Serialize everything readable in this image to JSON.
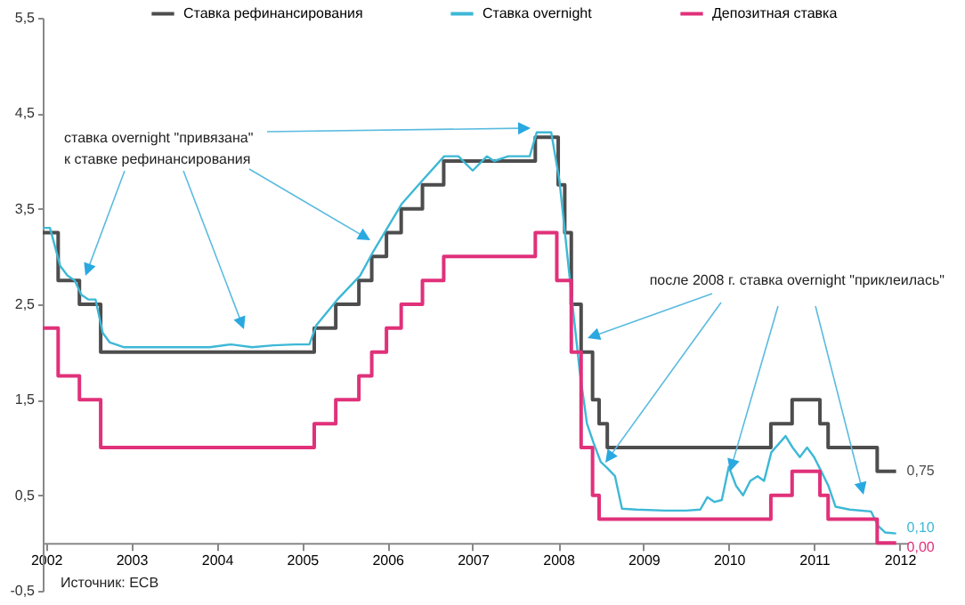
{
  "chart_data": {
    "type": "line",
    "series": [
      {
        "name": "Ставка рефинансирования",
        "color": "#4d4d4d",
        "type": "step",
        "x": [
          "2002-10-01",
          "2002-12-06",
          "2003-03-07",
          "2003-06-06",
          "2005-12-06",
          "2006-03-08",
          "2006-06-15",
          "2006-08-09",
          "2006-10-11",
          "2006-12-13",
          "2007-03-14",
          "2007-06-13",
          "2008-07-09",
          "2008-10-15",
          "2008-11-12",
          "2008-12-10",
          "2009-01-21",
          "2009-03-11",
          "2009-04-08",
          "2009-05-13",
          "2011-04-13",
          "2011-07-13",
          "2011-11-09",
          "2011-12-14",
          "2012-07-11",
          "2012-09-30"
        ],
        "values": [
          3.25,
          2.75,
          2.5,
          2.0,
          2.25,
          2.5,
          2.75,
          3.0,
          3.25,
          3.5,
          3.75,
          4.0,
          4.25,
          3.75,
          3.25,
          2.5,
          2.0,
          1.5,
          1.25,
          1.0,
          1.25,
          1.5,
          1.25,
          1.0,
          0.75,
          0.75
        ]
      },
      {
        "name": "Ставка overnight",
        "color": "#3db8d6",
        "x": [
          "2002-10-01",
          "2002-11-01",
          "2002-12-15",
          "2003-01-15",
          "2003-02-15",
          "2003-03-15",
          "2003-04-15",
          "2003-05-15",
          "2003-06-15",
          "2003-07-15",
          "2003-09-15",
          "2003-12-15",
          "2004-03-15",
          "2004-06-15",
          "2004-09-15",
          "2004-12-15",
          "2005-03-15",
          "2005-06-15",
          "2005-09-15",
          "2005-11-15",
          "2005-12-15",
          "2006-03-15",
          "2006-06-20",
          "2006-08-15",
          "2006-10-15",
          "2006-12-15",
          "2007-03-15",
          "2007-06-15",
          "2007-08-15",
          "2007-10-15",
          "2007-12-15",
          "2008-01-15",
          "2008-03-15",
          "2008-06-15",
          "2008-07-15",
          "2008-09-15",
          "2008-10-20",
          "2008-11-15",
          "2008-12-15",
          "2009-01-15",
          "2009-02-15",
          "2009-03-15",
          "2009-04-15",
          "2009-05-15",
          "2009-06-15",
          "2009-07-15",
          "2009-09-15",
          "2010-01-15",
          "2010-04-15",
          "2010-06-15",
          "2010-07-15",
          "2010-08-15",
          "2010-09-15",
          "2010-10-15",
          "2010-11-15",
          "2010-12-15",
          "2011-01-15",
          "2011-02-15",
          "2011-03-15",
          "2011-04-15",
          "2011-06-15",
          "2011-07-15",
          "2011-08-15",
          "2011-09-15",
          "2011-10-15",
          "2011-11-15",
          "2011-12-15",
          "2012-01-15",
          "2012-03-15",
          "2012-06-15",
          "2012-07-15",
          "2012-08-15",
          "2012-09-30"
        ],
        "values": [
          3.3,
          3.3,
          2.9,
          2.8,
          2.75,
          2.6,
          2.55,
          2.55,
          2.2,
          2.1,
          2.05,
          2.05,
          2.05,
          2.05,
          2.05,
          2.08,
          2.05,
          2.07,
          2.08,
          2.08,
          2.28,
          2.55,
          2.8,
          3.05,
          3.3,
          3.55,
          3.8,
          4.05,
          4.05,
          3.9,
          4.05,
          4.0,
          4.05,
          4.05,
          4.3,
          4.3,
          3.8,
          3.2,
          2.5,
          1.8,
          1.25,
          1.05,
          0.85,
          0.78,
          0.7,
          0.36,
          0.35,
          0.34,
          0.34,
          0.35,
          0.48,
          0.43,
          0.45,
          0.8,
          0.6,
          0.5,
          0.65,
          0.7,
          0.65,
          0.95,
          1.12,
          1.0,
          0.9,
          1.0,
          0.9,
          0.75,
          0.6,
          0.38,
          0.35,
          0.33,
          0.18,
          0.11,
          0.1
        ]
      },
      {
        "name": "Депозитная ставка",
        "color": "#e0317a",
        "type": "step",
        "x": [
          "2002-10-01",
          "2002-12-06",
          "2003-03-07",
          "2003-06-06",
          "2005-12-06",
          "2006-03-08",
          "2006-06-15",
          "2006-08-09",
          "2006-10-11",
          "2006-12-13",
          "2007-03-14",
          "2007-06-13",
          "2008-07-09",
          "2008-10-09",
          "2008-12-10",
          "2009-01-21",
          "2009-03-11",
          "2009-04-08",
          "2011-04-13",
          "2011-07-13",
          "2011-11-09",
          "2011-12-14",
          "2012-07-11",
          "2012-09-30"
        ],
        "values": [
          2.25,
          1.75,
          1.5,
          1.0,
          1.25,
          1.5,
          1.75,
          2.0,
          2.25,
          2.5,
          2.75,
          3.0,
          3.25,
          2.75,
          2.0,
          1.0,
          0.5,
          0.25,
          0.5,
          0.75,
          0.5,
          0.25,
          0.0,
          0.0
        ]
      }
    ],
    "xlim": [
      "2002-10-01",
      "2012-11-20"
    ],
    "xticks": [
      {
        "value": "2002-10-15",
        "label": "2002"
      },
      {
        "value": "2003-10-15",
        "label": "2003"
      },
      {
        "value": "2004-10-15",
        "label": "2004"
      },
      {
        "value": "2005-10-15",
        "label": "2005"
      },
      {
        "value": "2006-10-15",
        "label": "2006"
      },
      {
        "value": "2007-10-15",
        "label": "2007"
      },
      {
        "value": "2008-10-15",
        "label": "2008"
      },
      {
        "value": "2009-10-15",
        "label": "2009"
      },
      {
        "value": "2010-10-15",
        "label": "2010"
      },
      {
        "value": "2011-10-15",
        "label": "2011"
      },
      {
        "value": "2012-10-15",
        "label": "2012"
      }
    ],
    "ylim": [
      -0.5,
      5.5
    ],
    "yticks": [
      {
        "value": -0.5,
        "label": "-0,5"
      },
      {
        "value": 0.5,
        "label": "0,5"
      },
      {
        "value": 1.5,
        "label": "1,5"
      },
      {
        "value": 2.5,
        "label": "2,5"
      },
      {
        "value": 3.5,
        "label": "3,5"
      },
      {
        "value": 4.5,
        "label": "4,5"
      },
      {
        "value": 5.5,
        "label": "5,5"
      }
    ],
    "legend": "top",
    "grid": false,
    "annotations": [
      "ставка overnight \"привязана\"",
      "к ставке рефинансирования",
      {
        "text": "после 2008 г. ставка overnight \"приклеилась\"",
        "x": "2009-02-01",
        "y": 2.15
      },
      "Источник: ECB",
      {
        "text": "0,75",
        "x": "2012-09-30",
        "y": 0.75
      },
      {
        "text": "0,10",
        "x": "2012-09-30",
        "y": 0.1
      },
      {
        "text": "0,00",
        "x": "2012-09-30",
        "y": 0.0
      }
    ]
  }
}
